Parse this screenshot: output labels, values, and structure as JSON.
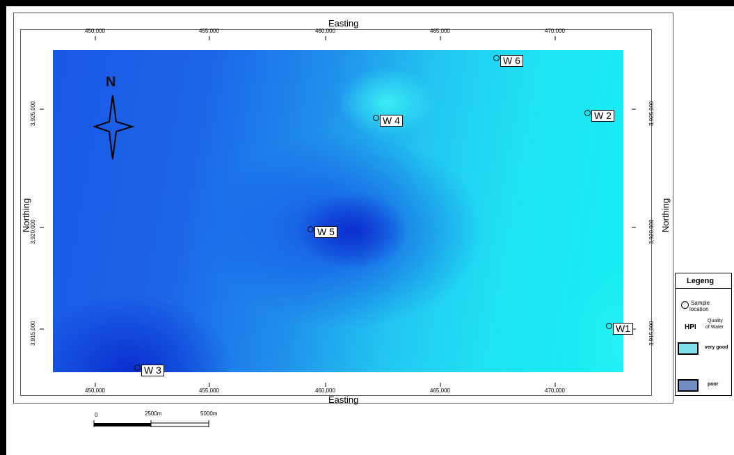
{
  "map": {
    "title_top": "Easting",
    "title_bottom": "Easting",
    "title_left": "Northing",
    "title_right": "Northing",
    "easting_ticks": [
      "450,000",
      "455,000",
      "460,000",
      "465,000",
      "470,000"
    ],
    "northing_ticks": [
      "3,925,000",
      "3,920,000",
      "3,915,000"
    ],
    "colors": {
      "very_good": "#14eef3",
      "poor": "#0a2fd0"
    }
  },
  "north_arrow": {
    "label": "N"
  },
  "wells": [
    {
      "label": "W 6"
    },
    {
      "label": "W 4"
    },
    {
      "label": "W 2"
    },
    {
      "label": "W 5"
    },
    {
      "label": "W1"
    },
    {
      "label": "W 3"
    }
  ],
  "legend": {
    "title": "Legeng",
    "sample_line1": "Sample",
    "sample_line2": "location",
    "hpi_label": "HPI",
    "quality_line1": "Quality",
    "quality_line2": "of Water",
    "very_good": "very good",
    "poor": "poor",
    "very_good_color": "#7fe0ea",
    "poor_color": "#6f8fc4"
  },
  "scale_bar": {
    "zero": "0",
    "mid": "2500m",
    "end": "5000m"
  }
}
